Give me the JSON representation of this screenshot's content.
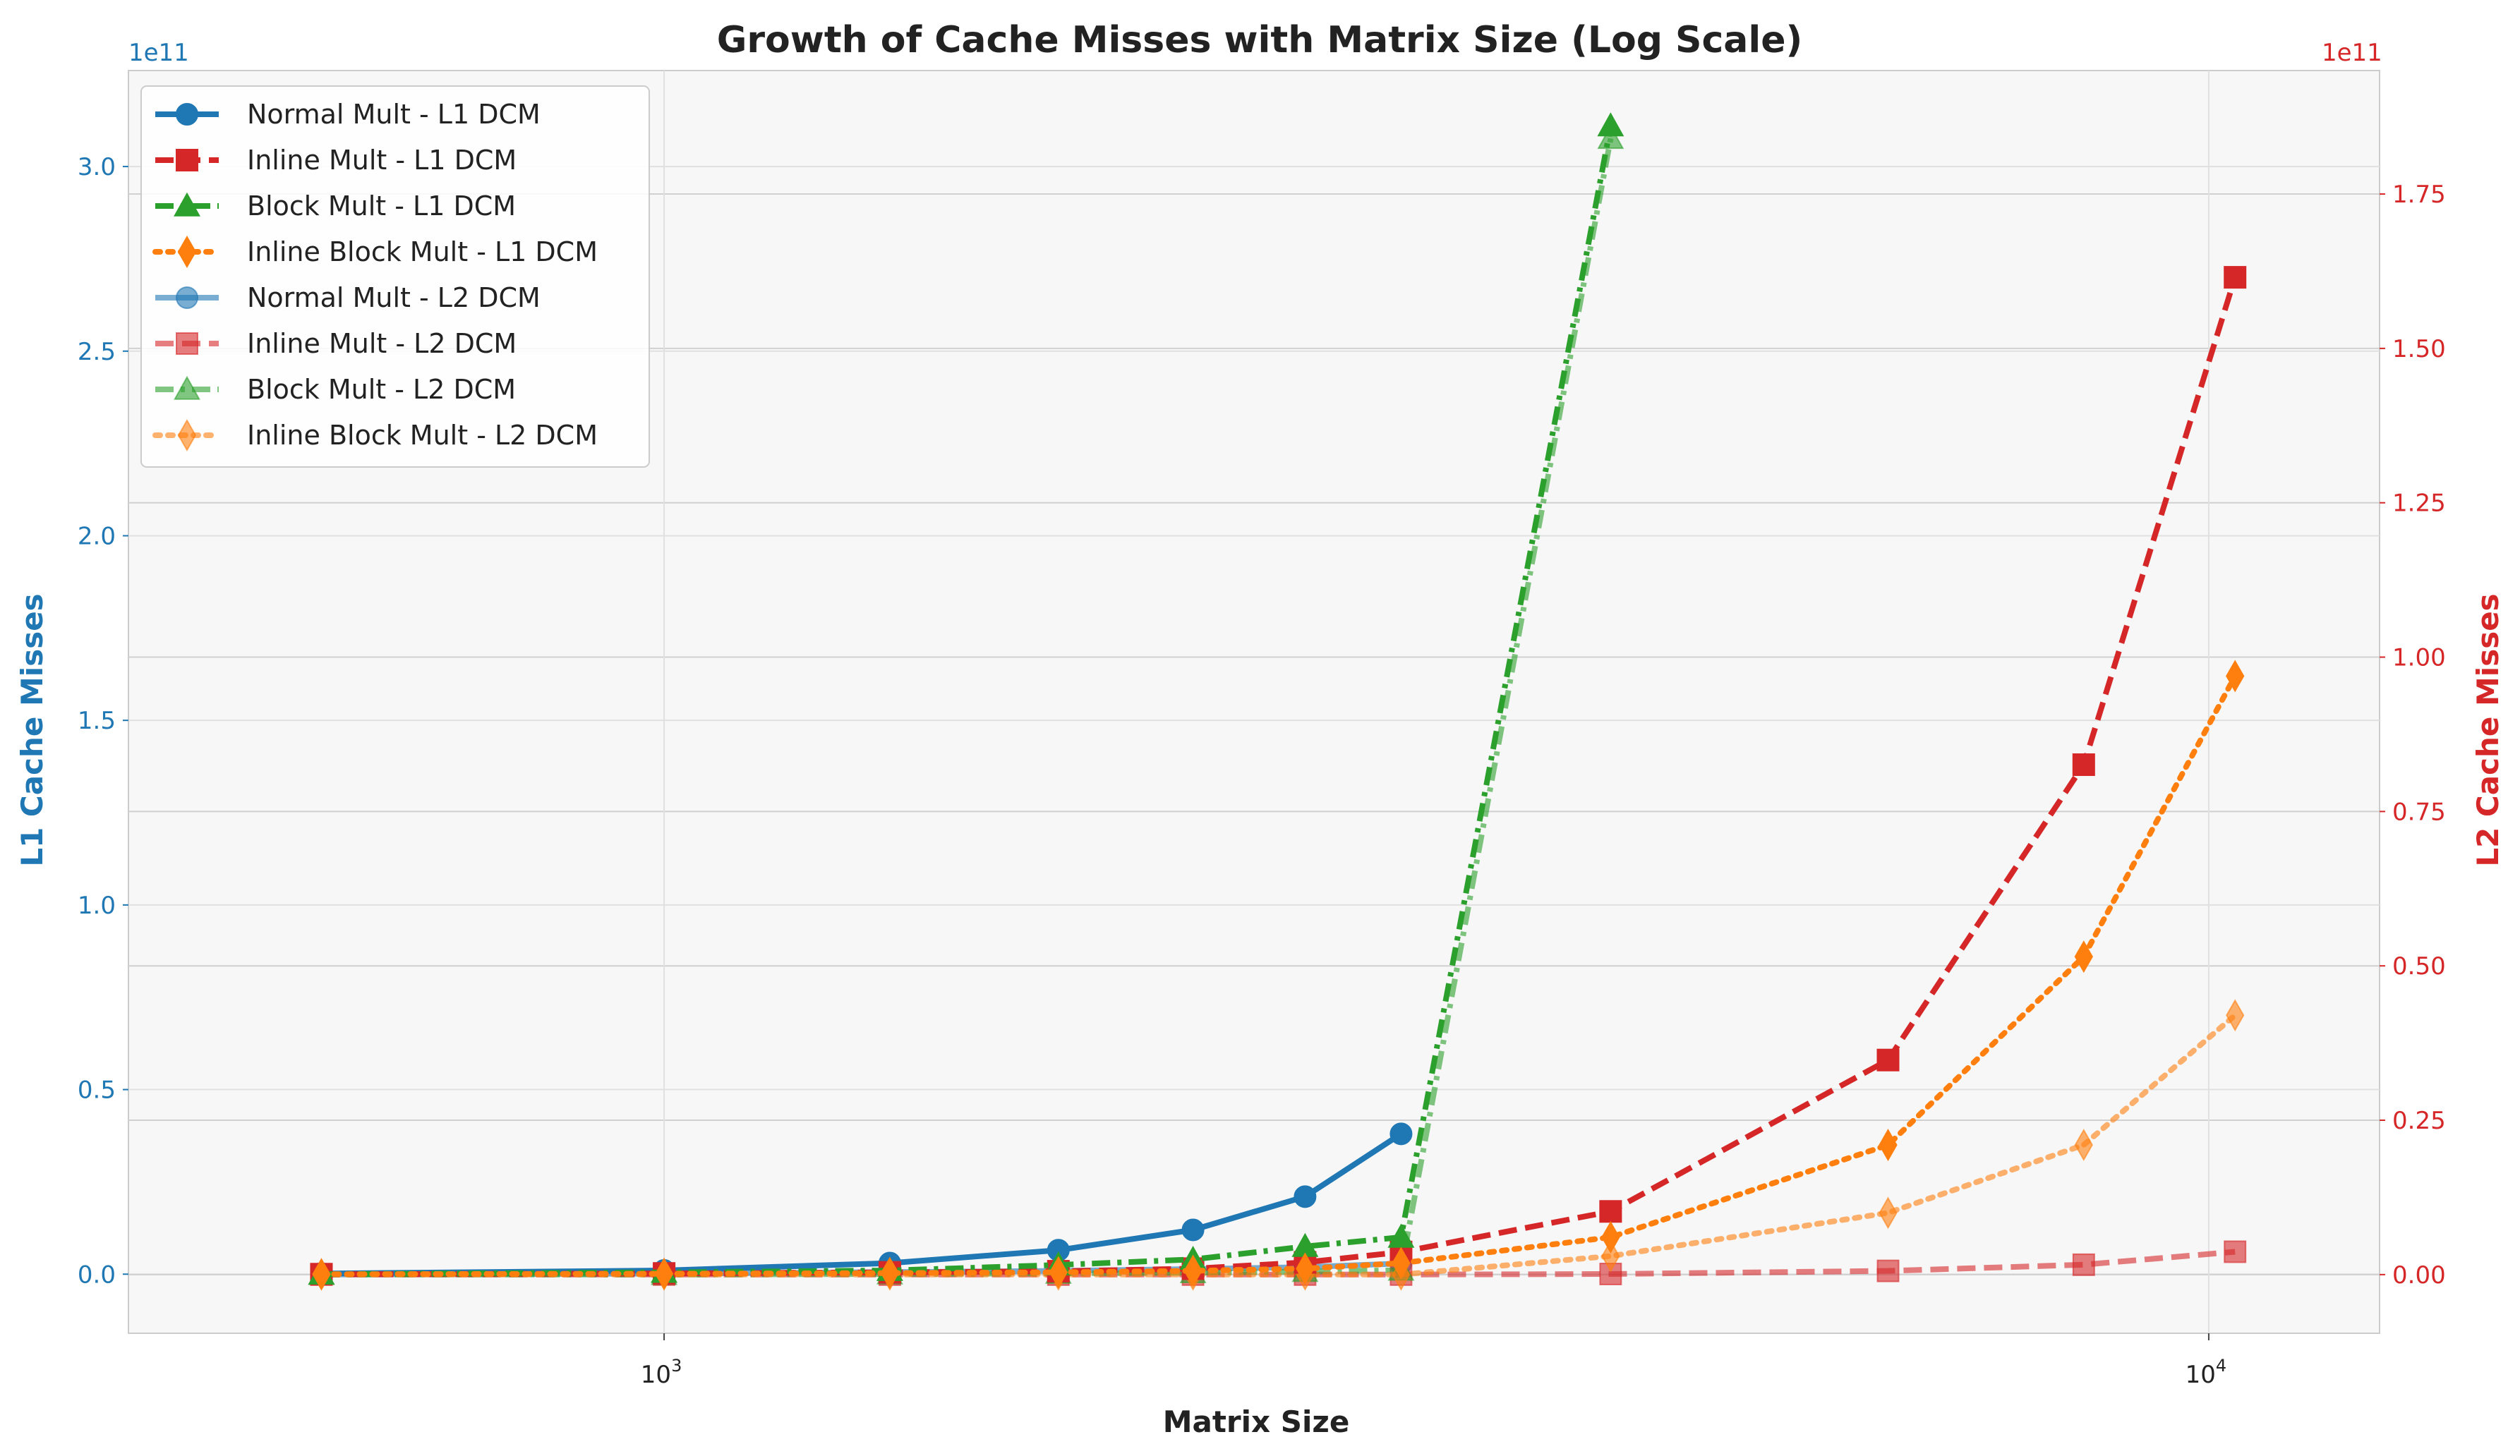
{
  "chart_data": {
    "type": "line",
    "title": "Growth of Cache Misses with Matrix Size (Log Scale)",
    "xlabel": "Matrix Size",
    "ylabel_left": "L1 Cache Misses",
    "ylabel_right": "L2 Cache Misses",
    "x_scale": "log",
    "x_ticks": [
      "10^3",
      "10^4"
    ],
    "x_tick_values": [
      1000,
      10000
    ],
    "xlim": [
      450,
      12900
    ],
    "ylim_left": [
      -16000000000,
      326000000000
    ],
    "ylim_right": [
      -9500000000,
      195000000000
    ],
    "left_offset_text": "1e11",
    "right_offset_text": "1e11",
    "left_ticks": [
      {
        "value": 0,
        "label": "0.0"
      },
      {
        "value": 50000000000,
        "label": "0.5"
      },
      {
        "value": 100000000000,
        "label": "1.0"
      },
      {
        "value": 150000000000,
        "label": "1.5"
      },
      {
        "value": 200000000000,
        "label": "2.0"
      },
      {
        "value": 250000000000,
        "label": "2.5"
      },
      {
        "value": 300000000000,
        "label": "3.0"
      }
    ],
    "right_ticks": [
      {
        "value": 0,
        "label": "0.00"
      },
      {
        "value": 25000000000,
        "label": "0.25"
      },
      {
        "value": 50000000000,
        "label": "0.50"
      },
      {
        "value": 75000000000,
        "label": "0.75"
      },
      {
        "value": 100000000000,
        "label": "1.00"
      },
      {
        "value": 125000000000,
        "label": "1.25"
      },
      {
        "value": 150000000000,
        "label": "1.50"
      },
      {
        "value": 175000000000,
        "label": "1.75"
      }
    ],
    "grid": true,
    "legend_position": "top-left",
    "series": [
      {
        "name": "Normal Mult - L1 DCM",
        "axis": "left",
        "color": "#1f77b4",
        "dash": "solid",
        "marker": "circle",
        "alpha": 1,
        "x": [
          600,
          1000,
          1400,
          1800,
          2200,
          2600,
          3000
        ],
        "y": [
          160000000,
          1000000000,
          3000000000,
          6500000000,
          12000000000,
          21000000000,
          38000000000
        ]
      },
      {
        "name": "Inline Mult - L1 DCM",
        "axis": "left",
        "color": "#d62728",
        "dash": "dashed",
        "marker": "square",
        "alpha": 1,
        "x": [
          600,
          1000,
          1400,
          1800,
          2200,
          2600,
          3000,
          4100,
          6200,
          8300,
          10400
        ],
        "y": [
          0,
          200000000,
          500000000,
          800000000,
          1500000000,
          3200000000,
          6000000000,
          17000000000,
          58000000000,
          138000000000,
          270000000000
        ]
      },
      {
        "name": "Block Mult - L1 DCM",
        "axis": "left",
        "color": "#2ca02c",
        "dash": "dashdot",
        "marker": "triangle",
        "alpha": 1,
        "x": [
          600,
          1000,
          1400,
          1800,
          2200,
          2600,
          3000,
          4100
        ],
        "y": [
          0,
          500000000,
          1000000000,
          2500000000,
          4000000000,
          7500000000,
          10000000000,
          311000000000
        ]
      },
      {
        "name": "Inline Block Mult - L1 DCM",
        "axis": "left",
        "color": "#ff7f0e",
        "dash": "dotted",
        "marker": "diamond",
        "alpha": 1,
        "x": [
          600,
          1000,
          1400,
          1800,
          2200,
          2600,
          3000,
          4100,
          6200,
          8300,
          10400
        ],
        "y": [
          0,
          100000000,
          300000000,
          500000000,
          900000000,
          1500000000,
          3000000000,
          10000000000,
          35000000000,
          86000000000,
          162000000000
        ]
      },
      {
        "name": "Normal Mult - L2 DCM",
        "axis": "right",
        "color": "#1f77b4",
        "dash": "solid",
        "marker": "circle",
        "alpha": 0.6,
        "x": [
          600,
          1000,
          1400,
          1800,
          2200,
          2600,
          3000
        ],
        "y": [
          0,
          150000000,
          400000000,
          600000000,
          900000000,
          1200000000,
          1800000000
        ]
      },
      {
        "name": "Inline Mult - L2 DCM",
        "axis": "right",
        "color": "#d62728",
        "dash": "dashed",
        "marker": "square",
        "alpha": 0.6,
        "x": [
          600,
          1000,
          1400,
          1800,
          2200,
          2600,
          3000,
          4100,
          6200,
          8300,
          10400
        ],
        "y": [
          0,
          0,
          0,
          0,
          0,
          0,
          0,
          100000000,
          600000000,
          1600000000,
          3700000000
        ]
      },
      {
        "name": "Block Mult - L2 DCM",
        "axis": "right",
        "color": "#2ca02c",
        "dash": "dashdot",
        "marker": "triangle",
        "alpha": 0.6,
        "x": [
          600,
          1000,
          1400,
          1800,
          2200,
          2600,
          3000,
          4100
        ],
        "y": [
          0,
          0,
          100000000,
          200000000,
          300000000,
          500000000,
          700000000,
          184000000000
        ]
      },
      {
        "name": "Inline Block Mult - L2 DCM",
        "axis": "right",
        "color": "#ff7f0e",
        "dash": "dotted",
        "marker": "diamond",
        "alpha": 0.6,
        "x": [
          600,
          1000,
          1400,
          1800,
          2200,
          2600,
          3000,
          4100,
          6200,
          8300,
          10400
        ],
        "y": [
          0,
          0,
          0,
          0,
          0,
          0,
          0,
          3000000000,
          10000000000,
          21000000000,
          42000000000
        ]
      }
    ]
  }
}
